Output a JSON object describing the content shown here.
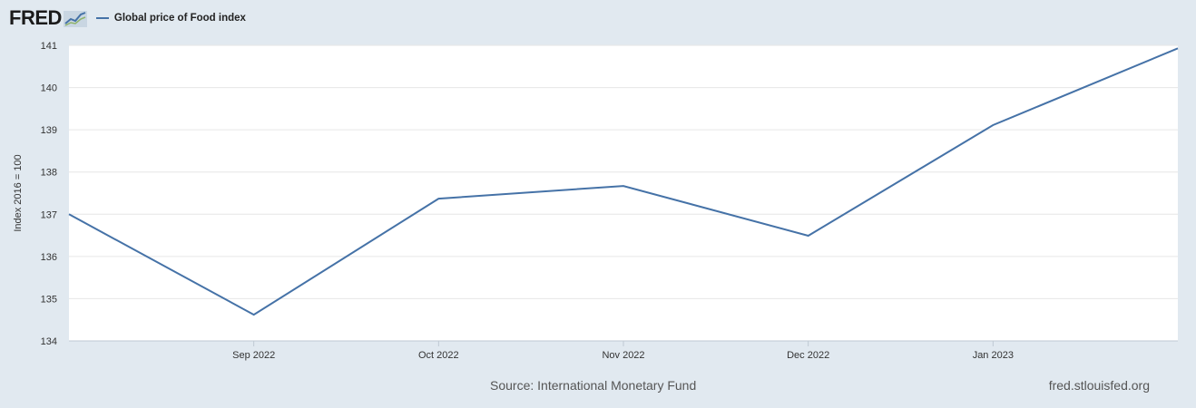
{
  "header": {
    "logo": "FRED",
    "legend_label": "Global price of Food index"
  },
  "colors": {
    "series": "#4572a7",
    "background": "#e1e9f0",
    "plot": "#ffffff"
  },
  "footer": {
    "source": "Source: International Monetary Fund",
    "url": "fred.stlouisfed.org"
  },
  "chart_data": {
    "type": "line",
    "ylabel": "Index 2016 = 100",
    "ylim": [
      134,
      141
    ],
    "yticks": [
      134,
      135,
      136,
      137,
      138,
      139,
      140,
      141
    ],
    "xtick_labels": [
      "Sep 2022",
      "Oct 2022",
      "Nov 2022",
      "Dec 2022",
      "Jan 2023"
    ],
    "grid": true,
    "legend": "top-left",
    "series": [
      {
        "name": "Global price of Food index",
        "x": [
          "2022-08",
          "2022-09",
          "2022-10",
          "2022-11",
          "2022-12",
          "2023-01",
          "2023-02"
        ],
        "values": [
          137.0,
          134.62,
          137.37,
          137.67,
          136.49,
          139.11,
          140.93
        ]
      }
    ]
  }
}
